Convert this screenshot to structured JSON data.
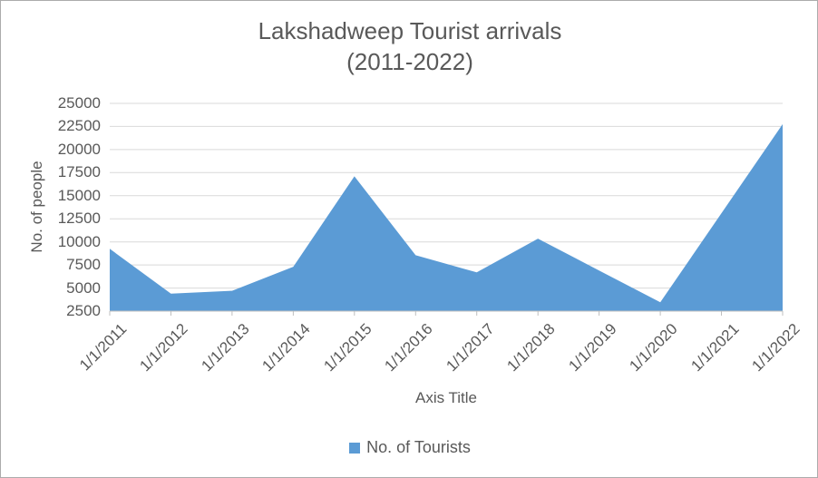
{
  "header": {
    "title_line1": "Lakshadweep Tourist arrivals",
    "title_line2": "(2011-2022)"
  },
  "chart_data": {
    "type": "area",
    "title": "Lakshadweep Tourist arrivals (2011-2022)",
    "categories": [
      "1/1/2011",
      "1/1/2012",
      "1/1/2013",
      "1/1/2014",
      "1/1/2015",
      "1/1/2016",
      "1/1/2017",
      "1/1/2018",
      "1/1/2019",
      "1/1/2020",
      "1/1/2021",
      "1/1/2022"
    ],
    "series": [
      {
        "name": "No. of Tourists",
        "values": [
          9250,
          4400,
          4700,
          7300,
          17100,
          8550,
          6700,
          10350,
          6900,
          3450,
          13100,
          22750
        ]
      }
    ],
    "xlabel": "Axis Title",
    "ylabel": "No. of people",
    "ylim": [
      2500,
      25000
    ],
    "y_ticks": [
      2500,
      5000,
      7500,
      10000,
      12500,
      15000,
      17500,
      20000,
      22500,
      25000
    ],
    "x_label_rotation": 45,
    "grid": true,
    "legend_position": "bottom",
    "colors": {
      "area_fill": "#5b9bd5",
      "gridline": "#d9d9d9",
      "axis_line": "#bfbfbf",
      "text": "#595959"
    }
  },
  "legend": {
    "items": [
      {
        "label": "No. of Tourists",
        "color": "#5b9bd5"
      }
    ]
  }
}
